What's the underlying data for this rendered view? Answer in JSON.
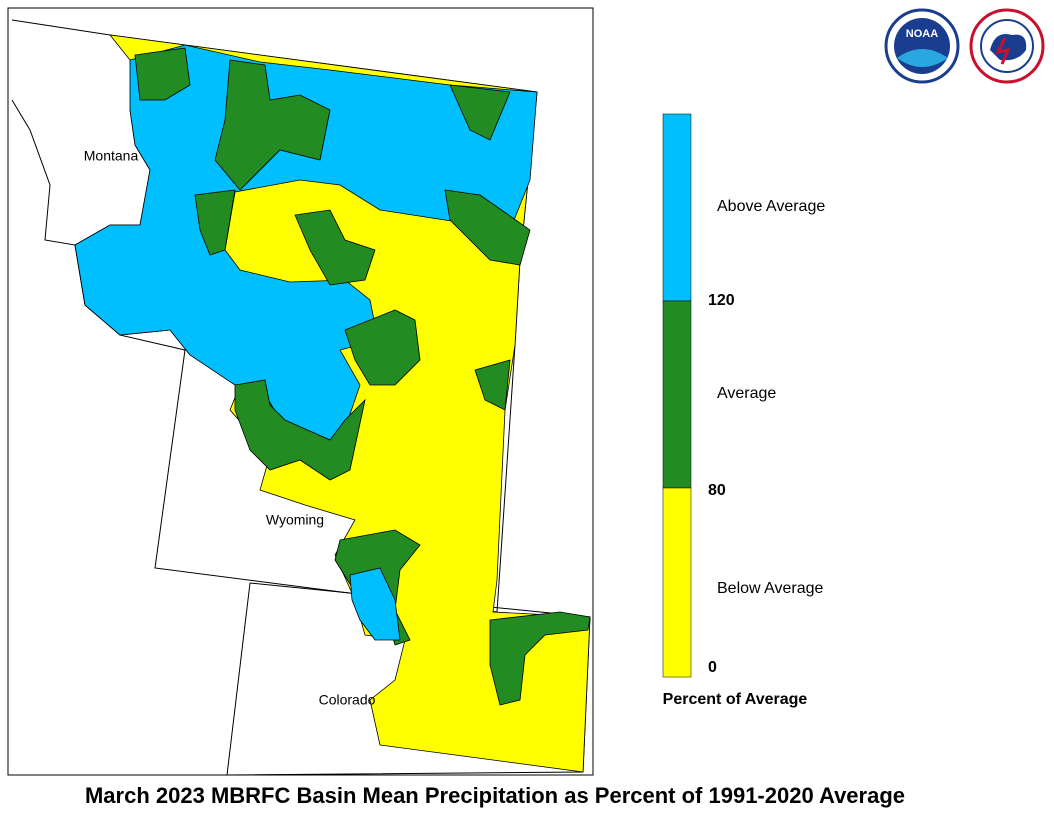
{
  "map": {
    "title": "March 2023 MBRFC Basin Mean Precipitation as Percent of 1991-2020 Average",
    "state_labels": [
      "Montana",
      "Wyoming",
      "Colorado"
    ],
    "logos": [
      "NOAA"
    ],
    "legend": {
      "title": "Percent of Average",
      "categories": [
        {
          "label": "Above Average",
          "color": "#00bfff"
        },
        {
          "label": "Average",
          "color": "#228b22"
        },
        {
          "label": "Below Average",
          "color": "#ffff00"
        }
      ],
      "ticks": [
        120,
        80,
        0
      ]
    }
  }
}
